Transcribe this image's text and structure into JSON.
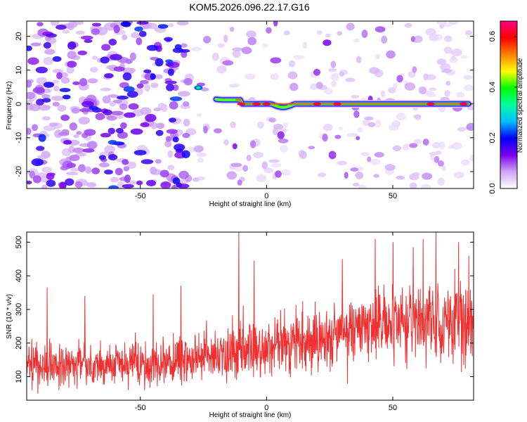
{
  "figure": {
    "title": "KOM5.2026.096.22.17.G16"
  },
  "chart_data": [
    {
      "type": "heatmap",
      "xlabel": "Height of straight line (km)",
      "ylabel": "Frequency (Hz)",
      "xlim": [
        -95,
        82
      ],
      "ylim": [
        -25,
        24.5
      ],
      "x_ticks": [
        -50,
        0,
        50
      ],
      "y_ticks": [
        -20,
        -10,
        0,
        10,
        20
      ],
      "colorbar": {
        "label": "Normalized spectral amplitude",
        "range": [
          0,
          0.66
        ],
        "ticks": [
          0.0,
          0.2,
          0.4,
          0.6
        ],
        "colormap": [
          "#ffffff",
          "#cfa6f5",
          "#7b00ee",
          "#0000ff",
          "#00bfff",
          "#00ffa0",
          "#00ff00",
          "#ffff00",
          "#ff8000",
          "#ff0000",
          "#ff0080"
        ]
      },
      "signal_track": {
        "start_height_km": -20,
        "end_height_km": 80,
        "frequency_hz": 0.0,
        "peak_heights_km": [
          -10,
          -4,
          0,
          20,
          28,
          65,
          78
        ],
        "amplitude_profile": [
          [
            -25,
            0.35
          ],
          [
            -18,
            0.45
          ],
          [
            -10,
            0.6
          ],
          [
            0,
            0.55
          ],
          [
            10,
            0.5
          ],
          [
            20,
            0.62
          ],
          [
            30,
            0.55
          ],
          [
            50,
            0.5
          ],
          [
            65,
            0.6
          ],
          [
            80,
            0.62
          ]
        ]
      },
      "noise_description": "dense background noise below -30 km, sparse above"
    },
    {
      "type": "line",
      "xlabel": "Height of straight line (km)",
      "ylabel": "SNR (10 * v/v)",
      "xlim": [
        -95,
        82
      ],
      "ylim": [
        30,
        530
      ],
      "x_ticks": [
        -50,
        0,
        50
      ],
      "y_ticks": [
        100,
        200,
        300,
        400,
        500
      ],
      "line_color": "#f03030",
      "series": [
        {
          "name": "SNR",
          "trend_x": [
            -95,
            -60,
            -40,
            -20,
            0,
            20,
            40,
            60,
            82
          ],
          "trend_mean": [
            135,
            135,
            140,
            160,
            185,
            210,
            250,
            265,
            255
          ],
          "trend_spread": [
            75,
            75,
            80,
            90,
            100,
            110,
            120,
            130,
            130
          ],
          "spikes": [
            [
              -87,
              365
            ],
            [
              -72,
              340
            ],
            [
              -45,
              345
            ],
            [
              -34,
              370
            ],
            [
              -11,
              530
            ],
            [
              -5,
              445
            ],
            [
              30,
              450
            ],
            [
              43,
              510
            ],
            [
              50,
              500
            ],
            [
              58,
              485
            ],
            [
              62,
              510
            ],
            [
              67,
              530
            ],
            [
              76,
              500
            ],
            [
              80,
              460
            ]
          ]
        }
      ]
    }
  ]
}
